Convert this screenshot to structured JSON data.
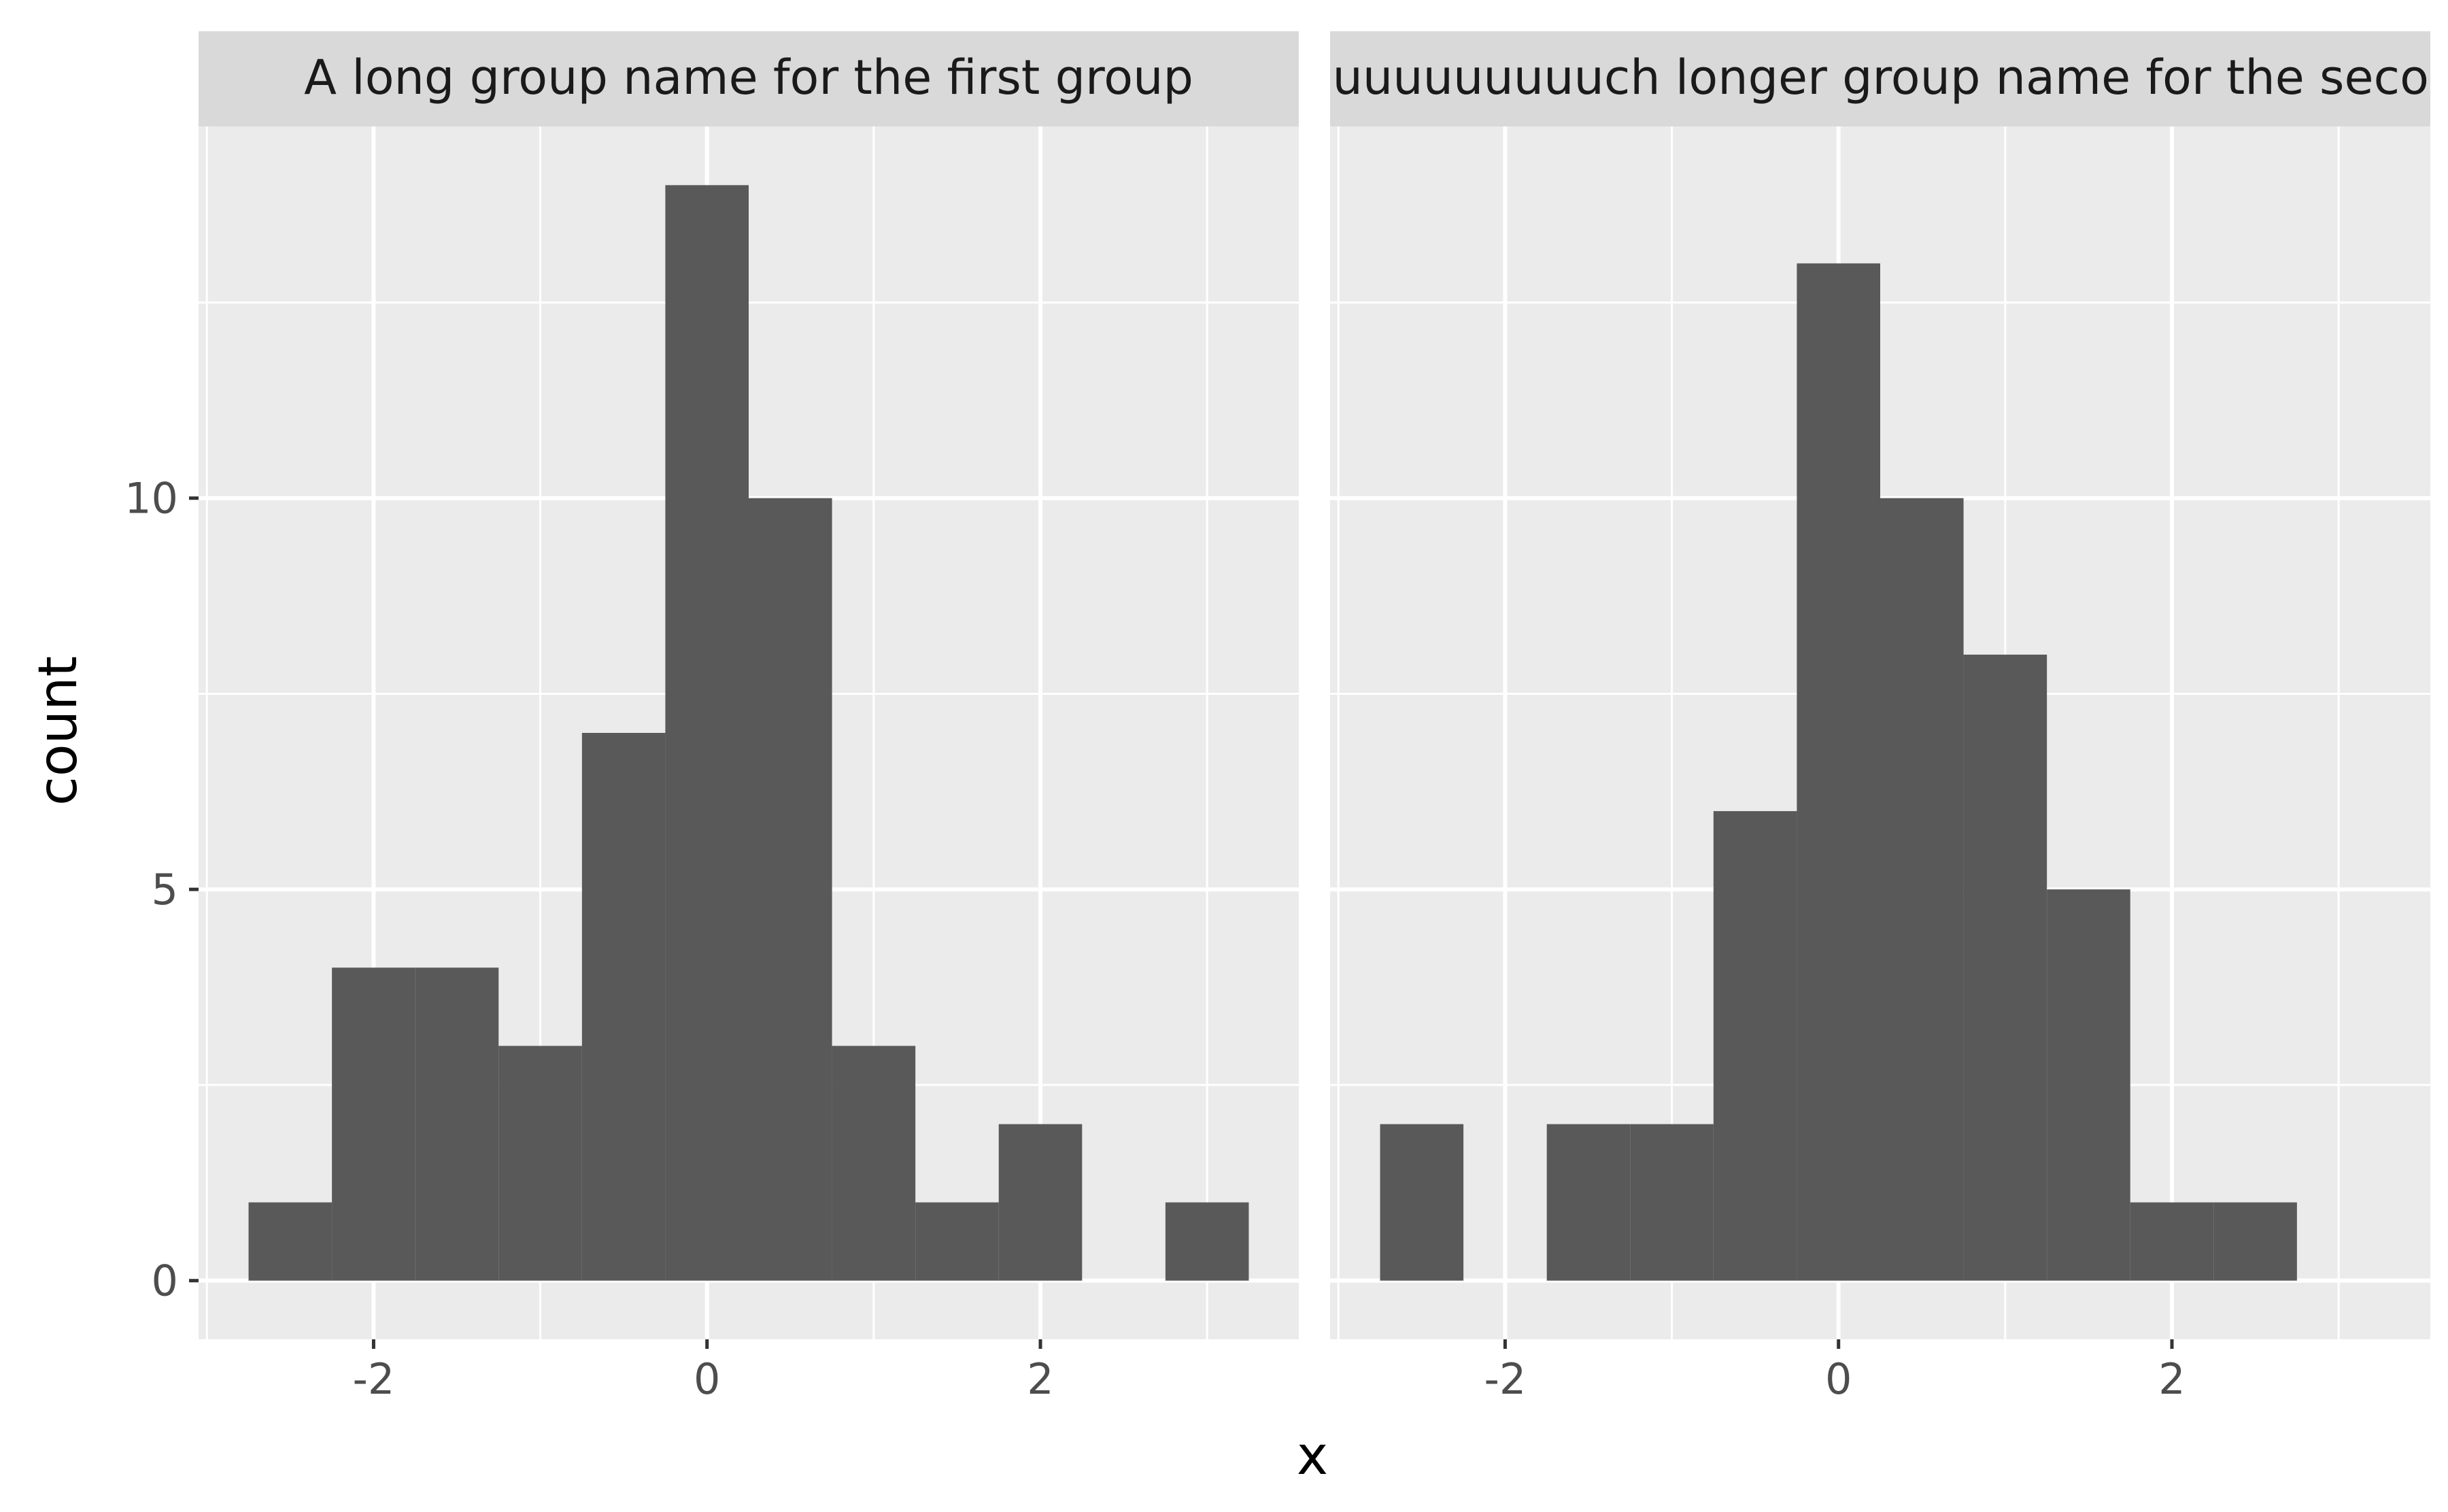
{
  "chart_data": {
    "type": "bar",
    "subtype": "histogram-faceted",
    "xlabel": "x",
    "ylabel": "count",
    "xlim": [
      -3.05,
      3.55
    ],
    "ylim": [
      -0.75,
      14.75
    ],
    "x_ticks": [
      -2,
      0,
      2
    ],
    "y_ticks": [
      0,
      5,
      10
    ],
    "grid": true,
    "bin_width": 0.5,
    "panels": [
      {
        "strip_label": "A long group name for the first group",
        "bins": [
          {
            "x0": -2.75,
            "x1": -2.25,
            "count": 1
          },
          {
            "x0": -2.25,
            "x1": -1.75,
            "count": 4
          },
          {
            "x0": -1.75,
            "x1": -1.25,
            "count": 4
          },
          {
            "x0": -1.25,
            "x1": -0.75,
            "count": 3
          },
          {
            "x0": -0.75,
            "x1": -0.25,
            "count": 7
          },
          {
            "x0": -0.25,
            "x1": 0.25,
            "count": 14
          },
          {
            "x0": 0.25,
            "x1": 0.75,
            "count": 10
          },
          {
            "x0": 0.75,
            "x1": 1.25,
            "count": 3
          },
          {
            "x0": 1.25,
            "x1": 1.75,
            "count": 1
          },
          {
            "x0": 1.75,
            "x1": 2.25,
            "count": 2
          },
          {
            "x0": 2.25,
            "x1": 2.75,
            "count": 0
          },
          {
            "x0": 2.75,
            "x1": 3.25,
            "count": 1
          }
        ]
      },
      {
        "strip_label": "A muuuuuuuuuuuuuch longer group name for the second group",
        "bins": [
          {
            "x0": -2.75,
            "x1": -2.25,
            "count": 2
          },
          {
            "x0": -2.25,
            "x1": -1.75,
            "count": 0
          },
          {
            "x0": -1.75,
            "x1": -1.25,
            "count": 2
          },
          {
            "x0": -1.25,
            "x1": -0.75,
            "count": 2
          },
          {
            "x0": -0.75,
            "x1": -0.25,
            "count": 6
          },
          {
            "x0": -0.25,
            "x1": 0.25,
            "count": 13
          },
          {
            "x0": 0.25,
            "x1": 0.75,
            "count": 10
          },
          {
            "x0": 0.75,
            "x1": 1.25,
            "count": 8
          },
          {
            "x0": 1.25,
            "x1": 1.75,
            "count": 5
          },
          {
            "x0": 1.75,
            "x1": 2.25,
            "count": 1
          },
          {
            "x0": 2.25,
            "x1": 2.75,
            "count": 1
          }
        ]
      }
    ]
  },
  "colors": {
    "panel_background": "#EBEBEB",
    "strip_background": "#D9D9D9",
    "grid_line": "#FFFFFF",
    "bar_fill": "#595959",
    "tick_mark": "#333333"
  }
}
